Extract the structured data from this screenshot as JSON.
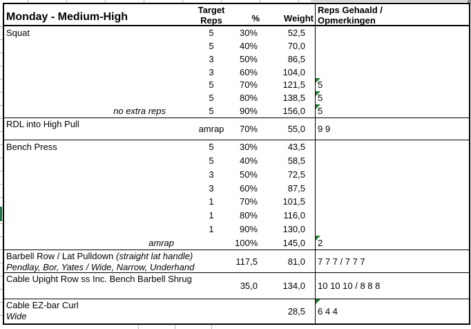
{
  "title": "Monday - Medium-High",
  "headers": {
    "target_line1": "Target",
    "target_line2": "Reps",
    "pct": "%",
    "weight": "Weight",
    "result_line1": "Reps Gehaald /",
    "result_line2": "Opmerkingen"
  },
  "colors": {
    "flag_green": "#1f7a33",
    "row_marker_green": "#217346",
    "border_black": "#000000",
    "gridline_gray": "#b3b3b3"
  },
  "icons": {
    "flag_triangle": "number-stored-as-text-flag"
  },
  "squat": {
    "name": "Squat",
    "rows": [
      {
        "note": "",
        "target": "5",
        "pct": "30%",
        "weight": "52,5",
        "result": ""
      },
      {
        "note": "",
        "target": "5",
        "pct": "40%",
        "weight": "70,0",
        "result": ""
      },
      {
        "note": "",
        "target": "3",
        "pct": "50%",
        "weight": "86,5",
        "result": ""
      },
      {
        "note": "",
        "target": "3",
        "pct": "60%",
        "weight": "104,0",
        "result": ""
      },
      {
        "note": "",
        "target": "5",
        "pct": "70%",
        "weight": "121,5",
        "result": "5"
      },
      {
        "note": "",
        "target": "5",
        "pct": "80%",
        "weight": "138,5",
        "result": "5"
      },
      {
        "note": "no extra reps",
        "target": "5",
        "pct": "90%",
        "weight": "156,0",
        "result": "5"
      }
    ]
  },
  "rdl": {
    "name": "RDL into High Pull",
    "target": "amrap",
    "pct": "70%",
    "weight": "55,0",
    "result": "9 9"
  },
  "bench": {
    "name": "Bench Press",
    "rows": [
      {
        "note": "",
        "target": "5",
        "pct": "30%",
        "weight": "43,5",
        "result": ""
      },
      {
        "note": "",
        "target": "5",
        "pct": "40%",
        "weight": "58,5",
        "result": ""
      },
      {
        "note": "",
        "target": "3",
        "pct": "50%",
        "weight": "72,5",
        "result": ""
      },
      {
        "note": "",
        "target": "3",
        "pct": "60%",
        "weight": "87,5",
        "result": ""
      },
      {
        "note": "",
        "target": "1",
        "pct": "70%",
        "weight": "101,5",
        "result": ""
      },
      {
        "note": "",
        "target": "1",
        "pct": "80%",
        "weight": "116,0",
        "result": ""
      },
      {
        "note": "",
        "target": "1",
        "pct": "90%",
        "weight": "130,0",
        "result": ""
      },
      {
        "note": "amrap",
        "target": "",
        "pct": "100%",
        "weight": "145,0",
        "result": "2"
      }
    ]
  },
  "barbell_row": {
    "name": "Barbell Row / Lat Pulldown",
    "name_suffix": "(straight lat handle)",
    "subtitle": "Pendlay, Bor, Yates / Wide, Narrow, Underhand",
    "pct": "117,5",
    "weight": "81,0",
    "result": "7 7 7 / 7 7 7"
  },
  "cable_upright": {
    "name": "Cable Upight Row ss Inc. Bench Barbell Shrug",
    "pct": "35,0",
    "weight": "134,0",
    "result": "10 10 10 / 8 8 8"
  },
  "cable_curl": {
    "name": "Cable EZ-bar Curl",
    "subtitle": "Wide",
    "weight": "28,5",
    "result": "6 4 4"
  }
}
